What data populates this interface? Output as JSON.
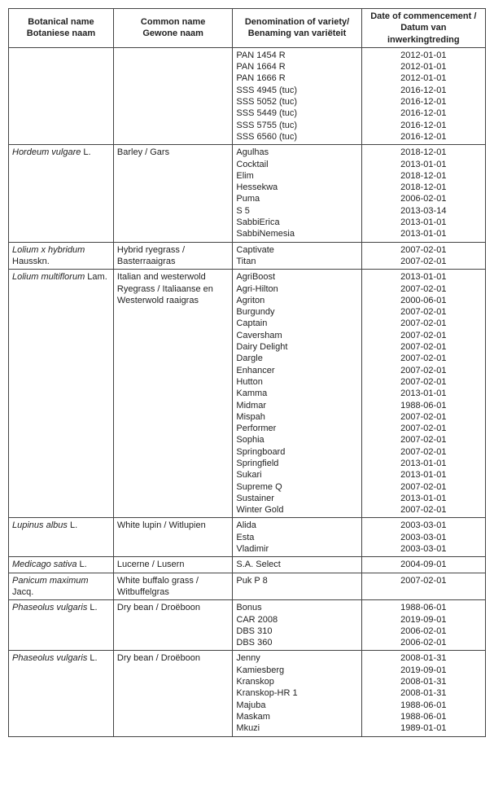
{
  "headers": {
    "botanical": "Botanical name\nBotaniese naam",
    "common": "Common name\nGewone naam",
    "variety": "Denomination of variety/\nBenaming van variëteit",
    "date": "Date of commencement /\nDatum van inwerkingtreding"
  },
  "rows": [
    {
      "botanical": "",
      "common": "",
      "varieties": [
        "PAN 1454 R",
        "PAN 1664 R",
        "PAN 1666 R",
        "SSS 4945 (tuc)",
        "SSS 5052 (tuc)",
        "SSS 5449 (tuc)",
        "SSS 5755 (tuc)",
        "SSS 6560 (tuc)"
      ],
      "dates": [
        "2012-01-01",
        "2012-01-01",
        "2012-01-01",
        "2016-12-01",
        "2016-12-01",
        "2016-12-01",
        "2016-12-01",
        "2016-12-01"
      ]
    },
    {
      "botanical": "Hordeum vulgare L.",
      "botanical_italic": "Hordeum vulgare",
      "botanical_suffix": " L.",
      "common": "Barley / Gars",
      "varieties": [
        "Agulhas",
        "Cocktail",
        "Elim",
        "Hessekwa",
        "Puma",
        "S 5",
        "SabbiErica",
        "SabbiNemesia"
      ],
      "dates": [
        "2018-12-01",
        "2013-01-01",
        "2018-12-01",
        "2018-12-01",
        "2006-02-01",
        "2013-03-14",
        "2013-01-01",
        "2013-01-01"
      ]
    },
    {
      "botanical": "Lolium x hybridum Hausskn.",
      "botanical_italic": "Lolium x hybridum",
      "botanical_suffix": " Hausskn.",
      "common": "Hybrid ryegrass / Basterraaigras",
      "varieties": [
        "Captivate",
        "Titan"
      ],
      "dates": [
        "2007-02-01",
        "2007-02-01"
      ]
    },
    {
      "botanical": "Lolium multiflorum Lam.",
      "botanical_italic": "Lolium multiflorum",
      "botanical_suffix": " Lam.",
      "common": "Italian and westerwold Ryegrass / Italiaanse en Westerwold raaigras",
      "varieties": [
        "AgriBoost",
        "Agri-Hilton",
        "Agriton",
        "Burgundy",
        "Captain",
        "Caversham",
        "Dairy Delight",
        "Dargle",
        "Enhancer",
        "Hutton",
        "Kamma",
        "Midmar",
        "Mispah",
        "Performer",
        "Sophia",
        "Springboard",
        "Springfield",
        "Sukari",
        "Supreme Q",
        "Sustainer",
        "Winter Gold"
      ],
      "dates": [
        "2013-01-01",
        "2007-02-01",
        "2000-06-01",
        "2007-02-01",
        "2007-02-01",
        "2007-02-01",
        "2007-02-01",
        "2007-02-01",
        "2007-02-01",
        "2007-02-01",
        "2013-01-01",
        "1988-06-01",
        "2007-02-01",
        "2007-02-01",
        "2007-02-01",
        "2007-02-01",
        "2013-01-01",
        "2013-01-01",
        "2007-02-01",
        "2013-01-01",
        "2007-02-01"
      ]
    },
    {
      "botanical": "Lupinus albus L.",
      "botanical_italic": "Lupinus albus",
      "botanical_suffix": " L.",
      "common": "White lupin / Witlupien",
      "varieties": [
        "Alida",
        "Esta",
        "Vladimir"
      ],
      "dates": [
        "2003-03-01",
        "2003-03-01",
        "2003-03-01"
      ]
    },
    {
      "botanical": "Medicago sativa L.",
      "botanical_italic": "Medicago sativa",
      "botanical_suffix": " L.",
      "common": "Lucerne / Lusern",
      "varieties": [
        "S.A. Select"
      ],
      "dates": [
        "2004-09-01"
      ]
    },
    {
      "botanical": "Panicum maximum Jacq.",
      "botanical_italic": "Panicum maximum",
      "botanical_suffix": " Jacq.",
      "common": "White buffalo grass / Witbuffelgras",
      "varieties": [
        "Puk P 8"
      ],
      "dates": [
        "2007-02-01"
      ]
    },
    {
      "botanical": "Phaseolus vulgaris L.",
      "botanical_italic": "Phaseolus vulgaris",
      "botanical_suffix": " L.",
      "common": "Dry bean / Droëboon",
      "varieties": [
        "Bonus",
        "CAR 2008",
        "DBS 310",
        "DBS 360"
      ],
      "dates": [
        "1988-06-01",
        "2019-09-01",
        "2006-02-01",
        "2006-02-01"
      ]
    },
    {
      "botanical": "Phaseolus vulgaris L.",
      "botanical_italic": "Phaseolus vulgaris",
      "botanical_suffix": " L.",
      "common": "Dry bean / Droëboon",
      "varieties": [
        "Jenny",
        "Kamiesberg",
        "Kranskop",
        "Kranskop-HR 1",
        "Majuba",
        "Maskam",
        "Mkuzi"
      ],
      "dates": [
        "2008-01-31",
        "2019-09-01",
        "2008-01-31",
        "2008-01-31",
        "1988-06-01",
        "1988-06-01",
        "1989-01-01"
      ]
    }
  ]
}
